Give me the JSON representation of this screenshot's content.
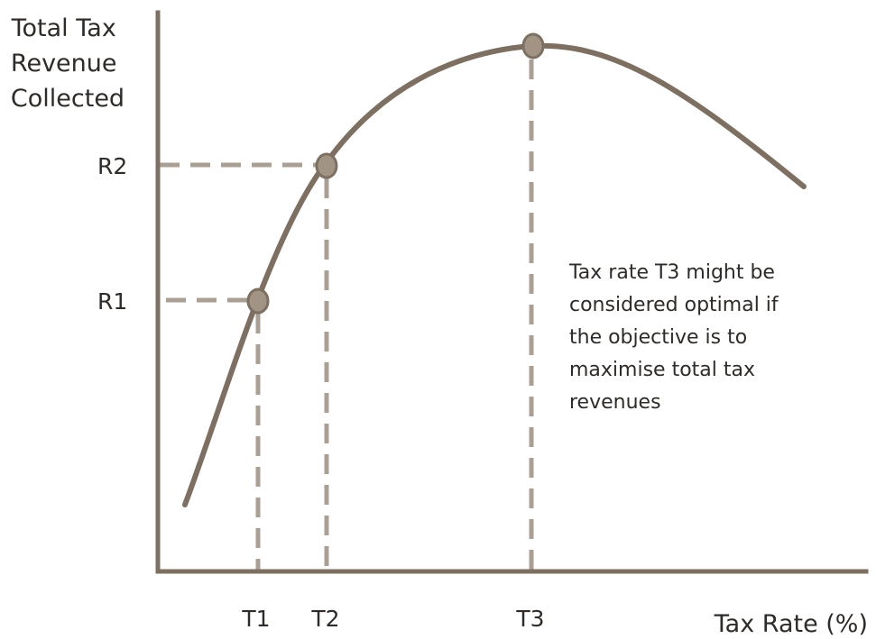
{
  "diagram": {
    "y_axis_title": [
      "Total Tax",
      "Revenue",
      "Collected"
    ],
    "x_axis_title": "Tax Rate (%)",
    "tick_labels": {
      "r1": "R1",
      "r2": "R2",
      "t1": "T1",
      "t2": "T2",
      "t3": "T3"
    },
    "annotation": [
      "Tax rate T3 might be",
      "considered optimal if",
      "the objective is to",
      "maximise total tax",
      "revenues"
    ],
    "colors": {
      "axis": "#7d6f62",
      "curve": "#7d6f62",
      "guide": "#aa9f95",
      "point_fill": "#a29485",
      "point_stroke": "#7d6f62",
      "text": "#2f2b28"
    }
  }
}
